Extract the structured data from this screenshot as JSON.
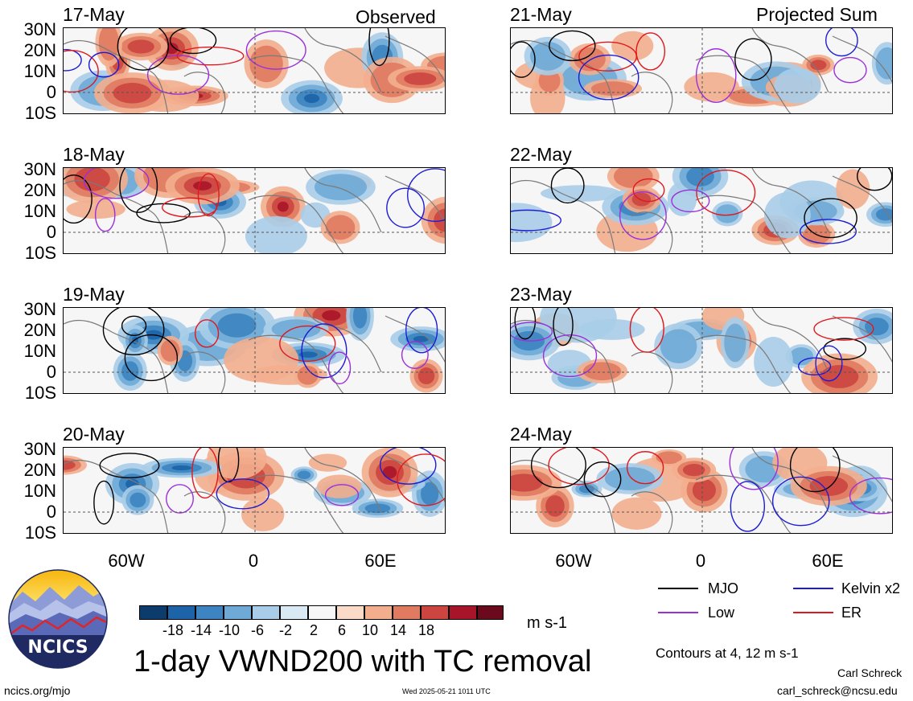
{
  "panels": [
    {
      "date": "17-May",
      "tag": "Observed"
    },
    {
      "date": "18-May",
      "tag": ""
    },
    {
      "date": "19-May",
      "tag": ""
    },
    {
      "date": "20-May",
      "tag": ""
    },
    {
      "date": "21-May",
      "tag": "Projected Sum"
    },
    {
      "date": "22-May",
      "tag": ""
    },
    {
      "date": "23-May",
      "tag": ""
    },
    {
      "date": "24-May",
      "tag": ""
    }
  ],
  "lat_labels": [
    "30N",
    "20N",
    "10N",
    "0",
    "10S"
  ],
  "lon_labels": [
    "60W",
    "0",
    "60E"
  ],
  "colorbar": {
    "labels": [
      "-18",
      "-14",
      "-10",
      "-6",
      "-2",
      "2",
      "6",
      "10",
      "14",
      "18"
    ],
    "colors": [
      "#0b3c6b",
      "#1d63a8",
      "#3d85c2",
      "#6faad6",
      "#a9cde8",
      "#d9eaf5",
      "#f7f7f7",
      "#fbdac8",
      "#f3ae8e",
      "#e07a60",
      "#cc4540",
      "#a8152a",
      "#6a0a1c"
    ],
    "units": "m s-1"
  },
  "legend": [
    {
      "name": "MJO",
      "color": "#000000"
    },
    {
      "name": "Kelvin x2",
      "color": "#1c1cd6"
    },
    {
      "name": "Low",
      "color": "#9b30d9"
    },
    {
      "name": "ER",
      "color": "#e0181e"
    }
  ],
  "title": "1-day VWND200 with TC removal",
  "contours_note": "Contours at 4, 12 m s-1",
  "logo_text": "NCICS",
  "url": "ncics.org/mjo",
  "timestamp": "Wed 2025-05-21 1011 UTC",
  "author": "Carl Schreck",
  "email": "carl_schreck@ncsu.edu"
}
